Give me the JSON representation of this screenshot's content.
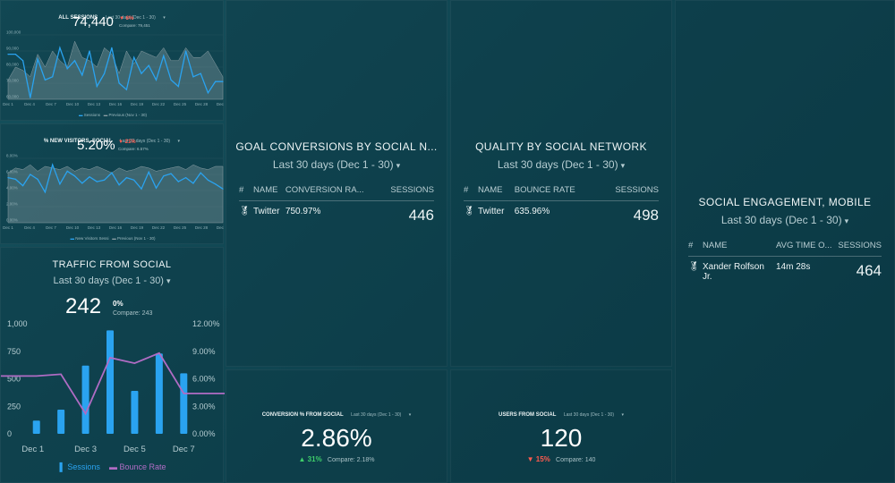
{
  "all_sessions": {
    "title": "ALL SESSIONS",
    "range": "Last 30 days (Dec 1 - 30)",
    "value": "74,440",
    "delta": "6%",
    "compare": "Compare: 79,451",
    "y_ticks": [
      "100,000",
      "90,000",
      "80,000",
      "70,000",
      "60,000"
    ],
    "x_ticks": [
      "Dec 1",
      "Dec 4",
      "Dec 7",
      "Dec 10",
      "Dec 13",
      "Dec 16",
      "Dec 19",
      "Dec 22",
      "Dec 25",
      "Dec 28",
      "Dec 30"
    ],
    "legend": [
      "Sessions",
      "Previous (Nov 1 - 30)"
    ]
  },
  "new_visitors": {
    "title": "% NEW VISITORS, SOCIAL",
    "range": "Last 30 days (Dec 1 - 30)",
    "value": "5.20%",
    "delta": "21%",
    "compare": "Compare: 6.57%",
    "y_ticks": [
      "8.00%",
      "6.00%",
      "4.00%",
      "2.00%",
      "0.00%"
    ],
    "x_ticks": [
      "Dec 1",
      "Dec 4",
      "Dec 7",
      "Dec 10",
      "Dec 13",
      "Dec 16",
      "Dec 19",
      "Dec 22",
      "Dec 25",
      "Dec 28",
      "Dec 30"
    ],
    "legend": [
      "New Visitors Sessi",
      "Previous (Nov 1 - 30)"
    ]
  },
  "traffic": {
    "title": "TRAFFIC FROM SOCIAL",
    "range": "Last 30 days (Dec 1 - 30)",
    "value": "242",
    "delta": "0%",
    "compare": "Compare: 243",
    "legend": [
      "Sessions",
      "Bounce Rate"
    ]
  },
  "goal_conv": {
    "title": "GOAL CONVERSIONS BY SOCIAL N...",
    "range": "Last 30 days (Dec 1 - 30)",
    "headers": [
      "#",
      "NAME",
      "CONVERSION RA...",
      "SESSIONS"
    ],
    "row": {
      "name": "Twitter",
      "metric": "750.97%",
      "sessions": "446"
    }
  },
  "quality": {
    "title": "QUALITY BY SOCIAL NETWORK",
    "range": "Last 30 days (Dec 1 - 30)",
    "headers": [
      "#",
      "NAME",
      "BOUNCE RATE",
      "SESSIONS"
    ],
    "row": {
      "name": "Twitter",
      "metric": "635.96%",
      "sessions": "498"
    }
  },
  "engagement": {
    "title": "SOCIAL ENGAGEMENT, MOBILE",
    "range": "Last 30 days (Dec 1 - 30)",
    "headers": [
      "#",
      "NAME",
      "AVG TIME O...",
      "SESSIONS"
    ],
    "row": {
      "name": "Xander Rolfson Jr.",
      "metric": "14m 28s",
      "sessions": "464"
    }
  },
  "conversion_pct": {
    "title": "CONVERSION % FROM SOCIAL",
    "range": "Last 30 days (Dec 1 - 30)",
    "value": "2.86%",
    "delta": "31%",
    "compare": "Compare: 2.18%"
  },
  "users": {
    "title": "USERS FROM SOCIAL",
    "range": "Last 30 days (Dec 1 - 30)",
    "value": "120",
    "delta": "15%",
    "compare": "Compare: 140"
  },
  "colors": {
    "accent": "#2aa3f0",
    "previous": "#8a9ea4",
    "bounce": "#b06cc4",
    "up": "#3fcf6b",
    "down": "#ff5b4f"
  },
  "chart_data": [
    {
      "type": "line",
      "title": "ALL SESSIONS",
      "x": [
        "Dec 1",
        "Dec 2",
        "Dec 3",
        "Dec 4",
        "Dec 5",
        "Dec 6",
        "Dec 7",
        "Dec 8",
        "Dec 9",
        "Dec 10",
        "Dec 11",
        "Dec 12",
        "Dec 13",
        "Dec 14",
        "Dec 15",
        "Dec 16",
        "Dec 17",
        "Dec 18",
        "Dec 19",
        "Dec 20",
        "Dec 21",
        "Dec 22",
        "Dec 23",
        "Dec 24",
        "Dec 25",
        "Dec 26",
        "Dec 27",
        "Dec 28",
        "Dec 29",
        "Dec 30"
      ],
      "series": [
        {
          "name": "Sessions",
          "values": [
            88000,
            88000,
            84000,
            61000,
            85000,
            72000,
            74000,
            92000,
            79000,
            84000,
            75000,
            90000,
            68000,
            76000,
            92000,
            70000,
            66000,
            86000,
            76000,
            81000,
            72000,
            87000,
            72000,
            68000,
            90000,
            74000,
            76000,
            64000,
            71000,
            71000
          ]
        },
        {
          "name": "Previous (Nov 1 - 30)",
          "values": [
            72000,
            80000,
            78000,
            74000,
            88000,
            80000,
            90000,
            84000,
            80000,
            96000,
            86000,
            84000,
            80000,
            92000,
            88000,
            76000,
            90000,
            82000,
            90000,
            88000,
            86000,
            92000,
            84000,
            84000,
            92000,
            86000,
            86000,
            90000,
            82000,
            74000
          ]
        }
      ],
      "ylim": [
        60000,
        100000
      ]
    },
    {
      "type": "line",
      "title": "% NEW VISITORS, SOCIAL",
      "x": [
        "Dec 1",
        "Dec 2",
        "Dec 3",
        "Dec 4",
        "Dec 5",
        "Dec 6",
        "Dec 7",
        "Dec 8",
        "Dec 9",
        "Dec 10",
        "Dec 11",
        "Dec 12",
        "Dec 13",
        "Dec 14",
        "Dec 15",
        "Dec 16",
        "Dec 17",
        "Dec 18",
        "Dec 19",
        "Dec 20",
        "Dec 21",
        "Dec 22",
        "Dec 23",
        "Dec 24",
        "Dec 25",
        "Dec 26",
        "Dec 27",
        "Dec 28",
        "Dec 29",
        "Dec 30"
      ],
      "series": [
        {
          "name": "New Visitors Sessi",
          "values": [
            5.6,
            5.4,
            4.6,
            6.0,
            5.4,
            3.8,
            7.2,
            4.8,
            6.4,
            5.8,
            4.9,
            5.7,
            5.1,
            5.3,
            6.2,
            4.7,
            5.6,
            5.3,
            4.2,
            6.3,
            4.3,
            5.8,
            6.1,
            5.1,
            5.6,
            4.9,
            6.2,
            5.3,
            4.8,
            4.2
          ]
        },
        {
          "name": "Previous (Nov 1 - 30)",
          "values": [
            6.2,
            6.8,
            6.6,
            7.2,
            6.4,
            7.0,
            6.8,
            6.6,
            7.0,
            6.4,
            6.8,
            6.6,
            7.0,
            6.6,
            6.2,
            6.8,
            6.4,
            6.6,
            7.0,
            6.8,
            6.4,
            6.6,
            6.8,
            7.0,
            6.6,
            7.2,
            6.8,
            6.6,
            7.0,
            7.0
          ]
        }
      ],
      "ylim": [
        0,
        8
      ]
    },
    {
      "type": "bar",
      "title": "TRAFFIC FROM SOCIAL",
      "categories": [
        "Dec 1",
        "Dec 2",
        "Dec 3",
        "Dec 4",
        "Dec 5",
        "Dec 6",
        "Dec 7"
      ],
      "series": [
        {
          "name": "Sessions",
          "values": [
            120,
            220,
            620,
            940,
            390,
            730,
            550
          ]
        },
        {
          "name": "Bounce Rate",
          "values": [
            6.3,
            6.5,
            2.2,
            8.3,
            7.7,
            8.8,
            4.4
          ]
        }
      ],
      "y_ticks_left": [
        "1,000",
        "750",
        "500",
        "250",
        "0"
      ],
      "y_ticks_right": [
        "12.00%",
        "9.00%",
        "6.00%",
        "3.00%",
        "0.00%"
      ],
      "x_ticks": [
        "Dec 1",
        "Dec 3",
        "Dec 5",
        "Dec 7"
      ],
      "ylim": [
        0,
        1000
      ],
      "ylim_right": [
        0,
        12
      ]
    }
  ]
}
